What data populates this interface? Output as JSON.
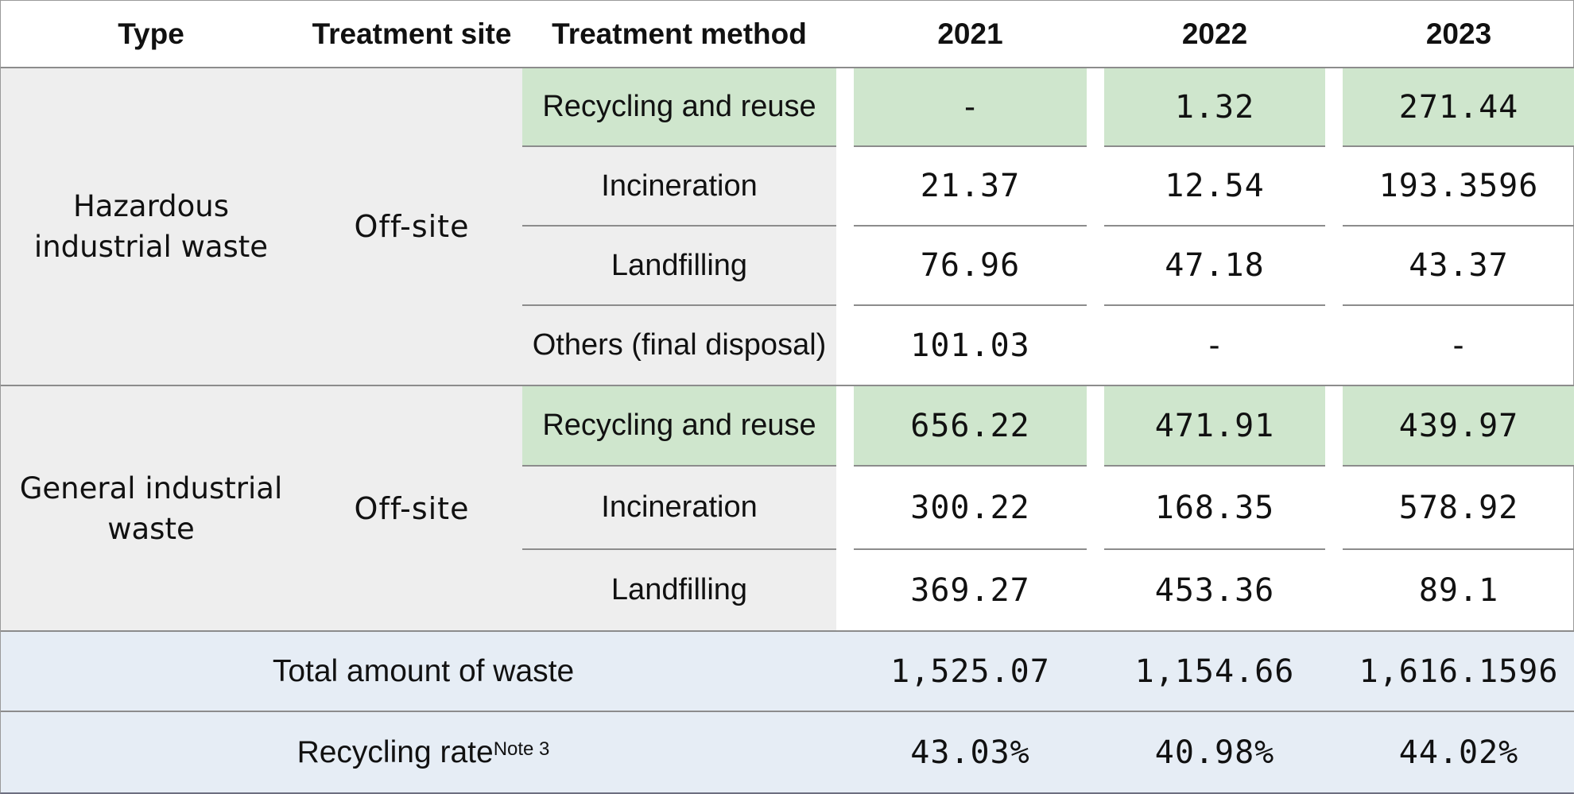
{
  "table": {
    "headers": {
      "type": "Type",
      "site": "Treatment site",
      "method": "Treatment method",
      "y2021": "2021",
      "y2022": "2022",
      "y2023": "2023"
    },
    "groups": [
      {
        "type_line1": "Hazardous",
        "type_line2": "industrial waste",
        "site": "Off-site",
        "rows": [
          {
            "method": "Recycling and reuse",
            "v2021": "-",
            "v2022": "1.32",
            "v2023": "271.44"
          },
          {
            "method": "Incineration",
            "v2021": "21.37",
            "v2022": "12.54",
            "v2023": "193.3596"
          },
          {
            "method": "Landfilling",
            "v2021": "76.96",
            "v2022": "47.18",
            "v2023": "43.37"
          },
          {
            "method": "Others (final disposal)",
            "v2021": "101.03",
            "v2022": "-",
            "v2023": "-"
          }
        ]
      },
      {
        "type_line1": "General industrial",
        "type_line2": "waste",
        "site": "Off-site",
        "rows": [
          {
            "method": "Recycling and reuse",
            "v2021": "656.22",
            "v2022": "471.91",
            "v2023": "439.97"
          },
          {
            "method": "Incineration",
            "v2021": "300.22",
            "v2022": "168.35",
            "v2023": "578.92"
          },
          {
            "method": "Landfilling",
            "v2021": "369.27",
            "v2022": "453.36",
            "v2023": "89.1"
          }
        ]
      }
    ],
    "total": {
      "label": "Total amount of waste",
      "v2021": "1,525.07",
      "v2022": "1,154.66",
      "v2023": "1,616.1596"
    },
    "rate": {
      "label": "Recycling rate",
      "note": "Note 3",
      "v2021": "43.03%",
      "v2022": "40.98%",
      "v2023": "44.02%"
    }
  },
  "colors": {
    "recycling_highlight": "#cfe6cd",
    "label_background": "#eeeeee",
    "summary_background": "#e6edf5"
  }
}
